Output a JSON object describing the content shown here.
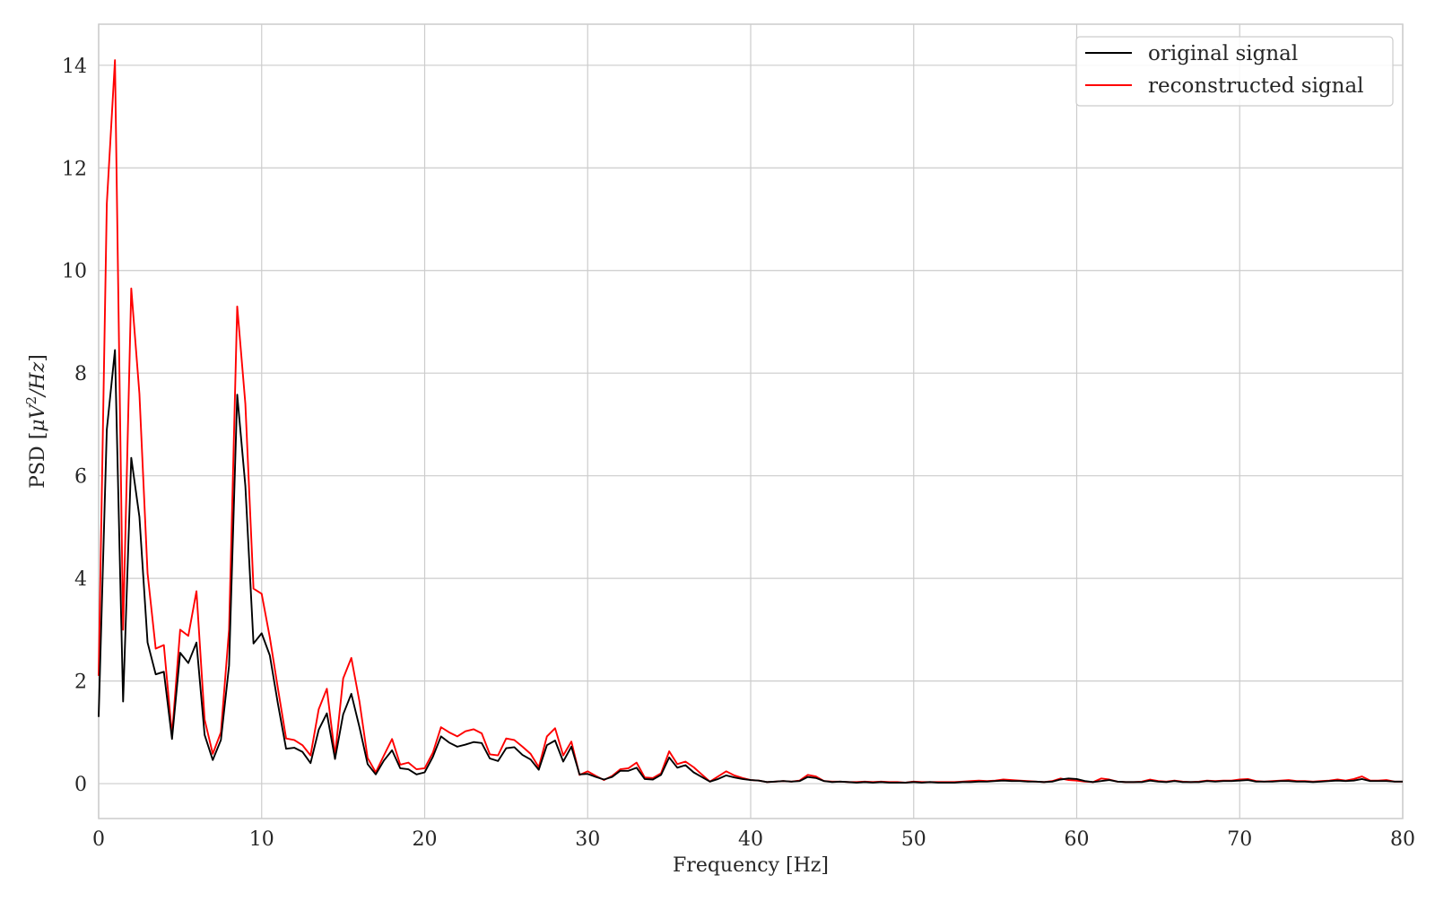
{
  "chart_data": {
    "type": "line",
    "title": "",
    "xlabel": "Frequency [Hz]",
    "ylabel_prefix": "PSD [",
    "ylabel_math": "μV",
    "ylabel_sup": "2",
    "ylabel_unit": "/Hz",
    "ylabel_suffix": "]",
    "xlim": [
      0,
      80
    ],
    "ylim": [
      -0.68,
      14.8
    ],
    "xticks": [
      0,
      10,
      20,
      30,
      40,
      50,
      60,
      70,
      80
    ],
    "yticks": [
      0,
      2,
      4,
      6,
      8,
      10,
      12,
      14
    ],
    "grid": true,
    "legend_position": "upper-right",
    "series": [
      {
        "name": "original signal",
        "color": "#000000",
        "points": [
          [
            0,
            1.3
          ],
          [
            0.5,
            6.9
          ],
          [
            1,
            8.45
          ],
          [
            1.5,
            1.6
          ],
          [
            2,
            6.35
          ],
          [
            2.5,
            5.2
          ],
          [
            3,
            2.75
          ],
          [
            3.5,
            2.13
          ],
          [
            4,
            2.18
          ],
          [
            4.5,
            0.87
          ],
          [
            5,
            2.55
          ],
          [
            5.5,
            2.35
          ],
          [
            6,
            2.75
          ],
          [
            6.5,
            0.95
          ],
          [
            7,
            0.46
          ],
          [
            7.5,
            0.85
          ],
          [
            8,
            2.3
          ],
          [
            8.5,
            7.58
          ],
          [
            9,
            5.8
          ],
          [
            9.5,
            2.73
          ],
          [
            10,
            2.93
          ],
          [
            10.5,
            2.5
          ],
          [
            11,
            1.55
          ],
          [
            11.5,
            0.68
          ],
          [
            12,
            0.7
          ],
          [
            12.5,
            0.62
          ],
          [
            13,
            0.4
          ],
          [
            13.5,
            1.05
          ],
          [
            14,
            1.37
          ],
          [
            14.5,
            0.48
          ],
          [
            15,
            1.35
          ],
          [
            15.5,
            1.75
          ],
          [
            16,
            1.1
          ],
          [
            16.5,
            0.38
          ],
          [
            17,
            0.18
          ],
          [
            17.5,
            0.45
          ],
          [
            18,
            0.65
          ],
          [
            18.5,
            0.3
          ],
          [
            19,
            0.28
          ],
          [
            19.5,
            0.18
          ],
          [
            20,
            0.22
          ],
          [
            20.5,
            0.52
          ],
          [
            21,
            0.92
          ],
          [
            21.5,
            0.8
          ],
          [
            22,
            0.72
          ],
          [
            22.5,
            0.76
          ],
          [
            23,
            0.81
          ],
          [
            23.5,
            0.79
          ],
          [
            24,
            0.49
          ],
          [
            24.5,
            0.44
          ],
          [
            25,
            0.69
          ],
          [
            25.5,
            0.71
          ],
          [
            26,
            0.56
          ],
          [
            26.5,
            0.47
          ],
          [
            27,
            0.27
          ],
          [
            27.5,
            0.75
          ],
          [
            28,
            0.84
          ],
          [
            28.5,
            0.43
          ],
          [
            29,
            0.72
          ],
          [
            29.5,
            0.18
          ],
          [
            30,
            0.19
          ],
          [
            30.5,
            0.13
          ],
          [
            31,
            0.08
          ],
          [
            31.5,
            0.13
          ],
          [
            32,
            0.25
          ],
          [
            32.5,
            0.25
          ],
          [
            33,
            0.31
          ],
          [
            33.5,
            0.09
          ],
          [
            34,
            0.08
          ],
          [
            34.5,
            0.17
          ],
          [
            35,
            0.51
          ],
          [
            35.5,
            0.31
          ],
          [
            36,
            0.36
          ],
          [
            36.5,
            0.22
          ],
          [
            37,
            0.13
          ],
          [
            37.5,
            0.04
          ],
          [
            38,
            0.09
          ],
          [
            38.5,
            0.16
          ],
          [
            39,
            0.12
          ],
          [
            39.5,
            0.09
          ],
          [
            40,
            0.07
          ],
          [
            40.5,
            0.06
          ],
          [
            41,
            0.03
          ],
          [
            41.5,
            0.04
          ],
          [
            42,
            0.05
          ],
          [
            42.5,
            0.04
          ],
          [
            43,
            0.05
          ],
          [
            43.5,
            0.13
          ],
          [
            44,
            0.11
          ],
          [
            44.5,
            0.05
          ],
          [
            45,
            0.03
          ],
          [
            45.5,
            0.04
          ],
          [
            46,
            0.03
          ],
          [
            46.5,
            0.02
          ],
          [
            47,
            0.03
          ],
          [
            47.5,
            0.02
          ],
          [
            48,
            0.03
          ],
          [
            48.5,
            0.02
          ],
          [
            49,
            0.02
          ],
          [
            49.5,
            0.02
          ],
          [
            50,
            0.03
          ],
          [
            50.5,
            0.02
          ],
          [
            51,
            0.03
          ],
          [
            51.5,
            0.02
          ],
          [
            52,
            0.02
          ],
          [
            52.5,
            0.02
          ],
          [
            53,
            0.03
          ],
          [
            53.5,
            0.03
          ],
          [
            54,
            0.04
          ],
          [
            54.5,
            0.04
          ],
          [
            55,
            0.05
          ],
          [
            55.5,
            0.06
          ],
          [
            56,
            0.05
          ],
          [
            56.5,
            0.05
          ],
          [
            57,
            0.04
          ],
          [
            57.5,
            0.04
          ],
          [
            58,
            0.03
          ],
          [
            58.5,
            0.04
          ],
          [
            59,
            0.08
          ],
          [
            59.5,
            0.1
          ],
          [
            60,
            0.09
          ],
          [
            60.5,
            0.05
          ],
          [
            61,
            0.03
          ],
          [
            61.5,
            0.05
          ],
          [
            62,
            0.07
          ],
          [
            62.5,
            0.04
          ],
          [
            63,
            0.03
          ],
          [
            63.5,
            0.03
          ],
          [
            64,
            0.03
          ],
          [
            64.5,
            0.06
          ],
          [
            65,
            0.04
          ],
          [
            65.5,
            0.03
          ],
          [
            66,
            0.05
          ],
          [
            66.5,
            0.03
          ],
          [
            67,
            0.03
          ],
          [
            67.5,
            0.03
          ],
          [
            68,
            0.05
          ],
          [
            68.5,
            0.04
          ],
          [
            69,
            0.05
          ],
          [
            69.5,
            0.05
          ],
          [
            70,
            0.06
          ],
          [
            70.5,
            0.07
          ],
          [
            71,
            0.04
          ],
          [
            71.5,
            0.04
          ],
          [
            72,
            0.04
          ],
          [
            72.5,
            0.05
          ],
          [
            73,
            0.05
          ],
          [
            73.5,
            0.04
          ],
          [
            74,
            0.04
          ],
          [
            74.5,
            0.03
          ],
          [
            75,
            0.04
          ],
          [
            75.5,
            0.05
          ],
          [
            76,
            0.06
          ],
          [
            76.5,
            0.05
          ],
          [
            77,
            0.06
          ],
          [
            77.5,
            0.09
          ],
          [
            78,
            0.05
          ],
          [
            78.5,
            0.05
          ],
          [
            79,
            0.05
          ],
          [
            79.5,
            0.04
          ],
          [
            80,
            0.04
          ]
        ]
      },
      {
        "name": "reconstructed signal",
        "color": "#ff0000",
        "points": [
          [
            0,
            2.1
          ],
          [
            0.5,
            11.3
          ],
          [
            1,
            14.1
          ],
          [
            1.5,
            3.0
          ],
          [
            2,
            9.65
          ],
          [
            2.5,
            7.6
          ],
          [
            3,
            4.1
          ],
          [
            3.5,
            2.63
          ],
          [
            4,
            2.7
          ],
          [
            4.5,
            0.95
          ],
          [
            5,
            3.0
          ],
          [
            5.5,
            2.88
          ],
          [
            6,
            3.75
          ],
          [
            6.5,
            1.25
          ],
          [
            7,
            0.58
          ],
          [
            7.5,
            1.0
          ],
          [
            8,
            3.0
          ],
          [
            8.5,
            9.3
          ],
          [
            9,
            7.4
          ],
          [
            9.5,
            3.8
          ],
          [
            10,
            3.7
          ],
          [
            10.5,
            2.85
          ],
          [
            11,
            1.85
          ],
          [
            11.5,
            0.88
          ],
          [
            12,
            0.85
          ],
          [
            12.5,
            0.75
          ],
          [
            13,
            0.55
          ],
          [
            13.5,
            1.45
          ],
          [
            14,
            1.85
          ],
          [
            14.5,
            0.55
          ],
          [
            15,
            2.05
          ],
          [
            15.5,
            2.45
          ],
          [
            16,
            1.6
          ],
          [
            16.5,
            0.5
          ],
          [
            17,
            0.22
          ],
          [
            17.5,
            0.55
          ],
          [
            18,
            0.87
          ],
          [
            18.5,
            0.37
          ],
          [
            19,
            0.41
          ],
          [
            19.5,
            0.28
          ],
          [
            20,
            0.3
          ],
          [
            20.5,
            0.6
          ],
          [
            21,
            1.1
          ],
          [
            21.5,
            1.0
          ],
          [
            22,
            0.92
          ],
          [
            22.5,
            1.02
          ],
          [
            23,
            1.06
          ],
          [
            23.5,
            0.98
          ],
          [
            24,
            0.57
          ],
          [
            24.5,
            0.55
          ],
          [
            25,
            0.88
          ],
          [
            25.5,
            0.85
          ],
          [
            26,
            0.72
          ],
          [
            26.5,
            0.58
          ],
          [
            27,
            0.32
          ],
          [
            27.5,
            0.92
          ],
          [
            28,
            1.08
          ],
          [
            28.5,
            0.55
          ],
          [
            29,
            0.82
          ],
          [
            29.5,
            0.17
          ],
          [
            30,
            0.24
          ],
          [
            30.5,
            0.15
          ],
          [
            31,
            0.07
          ],
          [
            31.5,
            0.15
          ],
          [
            32,
            0.28
          ],
          [
            32.5,
            0.3
          ],
          [
            33,
            0.41
          ],
          [
            33.5,
            0.12
          ],
          [
            34,
            0.11
          ],
          [
            34.5,
            0.2
          ],
          [
            35,
            0.63
          ],
          [
            35.5,
            0.38
          ],
          [
            36,
            0.43
          ],
          [
            36.5,
            0.32
          ],
          [
            37,
            0.18
          ],
          [
            37.5,
            0.04
          ],
          [
            38,
            0.14
          ],
          [
            38.5,
            0.24
          ],
          [
            39,
            0.16
          ],
          [
            39.5,
            0.11
          ],
          [
            40,
            0.07
          ],
          [
            40.5,
            0.06
          ],
          [
            41,
            0.03
          ],
          [
            41.5,
            0.04
          ],
          [
            42,
            0.05
          ],
          [
            42.5,
            0.04
          ],
          [
            43,
            0.06
          ],
          [
            43.5,
            0.17
          ],
          [
            44,
            0.14
          ],
          [
            44.5,
            0.05
          ],
          [
            45,
            0.04
          ],
          [
            45.5,
            0.04
          ],
          [
            46,
            0.03
          ],
          [
            46.5,
            0.03
          ],
          [
            47,
            0.04
          ],
          [
            47.5,
            0.03
          ],
          [
            48,
            0.04
          ],
          [
            48.5,
            0.03
          ],
          [
            49,
            0.03
          ],
          [
            49.5,
            0.02
          ],
          [
            50,
            0.04
          ],
          [
            50.5,
            0.03
          ],
          [
            51,
            0.03
          ],
          [
            51.5,
            0.03
          ],
          [
            52,
            0.03
          ],
          [
            52.5,
            0.03
          ],
          [
            53,
            0.04
          ],
          [
            53.5,
            0.05
          ],
          [
            54,
            0.06
          ],
          [
            54.5,
            0.05
          ],
          [
            55,
            0.06
          ],
          [
            55.5,
            0.08
          ],
          [
            56,
            0.07
          ],
          [
            56.5,
            0.06
          ],
          [
            57,
            0.05
          ],
          [
            57.5,
            0.04
          ],
          [
            58,
            0.03
          ],
          [
            58.5,
            0.05
          ],
          [
            59,
            0.1
          ],
          [
            59.5,
            0.07
          ],
          [
            60,
            0.06
          ],
          [
            60.5,
            0.04
          ],
          [
            61,
            0.03
          ],
          [
            61.5,
            0.1
          ],
          [
            62,
            0.08
          ],
          [
            62.5,
            0.04
          ],
          [
            63,
            0.03
          ],
          [
            63.5,
            0.03
          ],
          [
            64,
            0.04
          ],
          [
            64.5,
            0.08
          ],
          [
            65,
            0.05
          ],
          [
            65.5,
            0.04
          ],
          [
            66,
            0.06
          ],
          [
            66.5,
            0.04
          ],
          [
            67,
            0.03
          ],
          [
            67.5,
            0.04
          ],
          [
            68,
            0.06
          ],
          [
            68.5,
            0.05
          ],
          [
            69,
            0.06
          ],
          [
            69.5,
            0.06
          ],
          [
            70,
            0.08
          ],
          [
            70.5,
            0.09
          ],
          [
            71,
            0.05
          ],
          [
            71.5,
            0.04
          ],
          [
            72,
            0.05
          ],
          [
            72.5,
            0.06
          ],
          [
            73,
            0.07
          ],
          [
            73.5,
            0.05
          ],
          [
            74,
            0.05
          ],
          [
            74.5,
            0.04
          ],
          [
            75,
            0.05
          ],
          [
            75.5,
            0.06
          ],
          [
            76,
            0.08
          ],
          [
            76.5,
            0.06
          ],
          [
            77,
            0.09
          ],
          [
            77.5,
            0.14
          ],
          [
            78,
            0.06
          ],
          [
            78.5,
            0.06
          ],
          [
            79,
            0.07
          ],
          [
            79.5,
            0.04
          ],
          [
            80,
            0.04
          ]
        ]
      }
    ]
  }
}
